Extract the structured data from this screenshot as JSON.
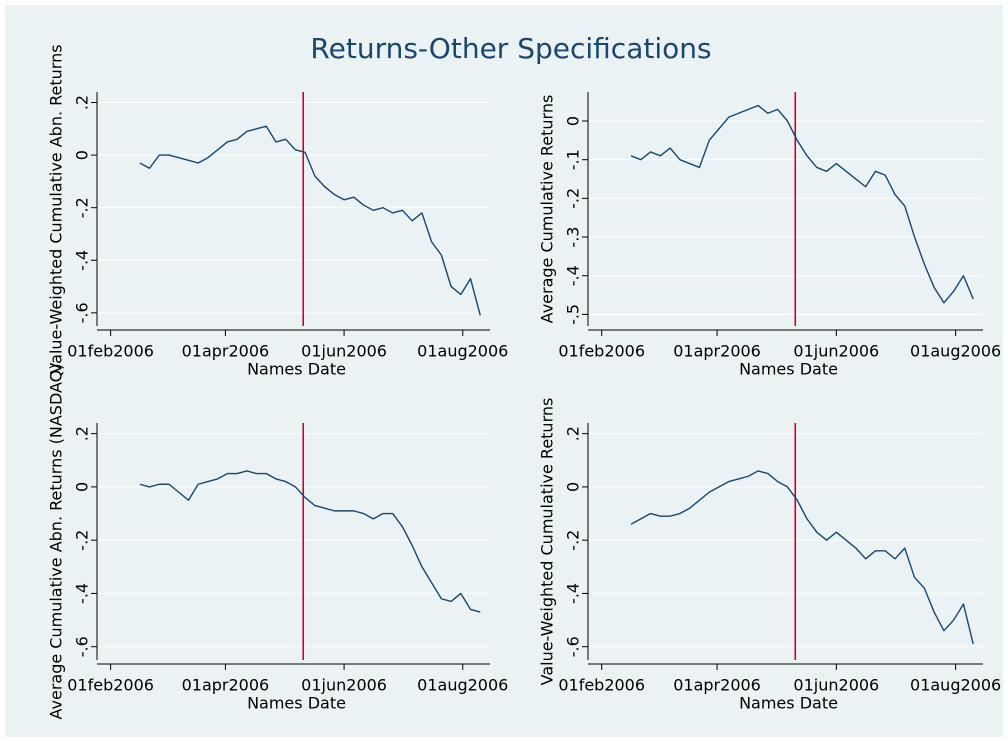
{
  "title": "Returns-Other Specifications",
  "chart_data": [
    {
      "type": "line",
      "ylabel": "Value-Weighted Cumulative Abn. Returns",
      "xlabel": "Names Date",
      "x": [
        "2006-02-16",
        "2006-02-21",
        "2006-02-26",
        "2006-03-03",
        "2006-03-08",
        "2006-03-13",
        "2006-03-18",
        "2006-03-23",
        "2006-03-28",
        "2006-04-02",
        "2006-04-07",
        "2006-04-12",
        "2006-04-17",
        "2006-04-22",
        "2006-04-27",
        "2006-05-02",
        "2006-05-07",
        "2006-05-12",
        "2006-05-17",
        "2006-05-22",
        "2006-05-27",
        "2006-06-01",
        "2006-06-06",
        "2006-06-11",
        "2006-06-16",
        "2006-06-21",
        "2006-06-26",
        "2006-07-01",
        "2006-07-06",
        "2006-07-11",
        "2006-07-16",
        "2006-07-21",
        "2006-07-26",
        "2006-07-31",
        "2006-08-05",
        "2006-08-10"
      ],
      "values": [
        -0.03,
        -0.05,
        0.0,
        0.0,
        -0.01,
        -0.02,
        -0.03,
        -0.01,
        0.02,
        0.05,
        0.06,
        0.09,
        0.1,
        0.11,
        0.05,
        0.06,
        0.02,
        0.01,
        -0.08,
        -0.12,
        -0.15,
        -0.17,
        -0.16,
        -0.19,
        -0.21,
        -0.2,
        -0.22,
        -0.21,
        -0.25,
        -0.22,
        -0.33,
        -0.38,
        -0.5,
        -0.53,
        -0.47,
        -0.61
      ],
      "color": "#1a476f",
      "xlim": [
        "2006-01-25",
        "2006-08-15"
      ],
      "xticks": [
        {
          "value": "2006-02-01",
          "label": "01feb2006"
        },
        {
          "value": "2006-04-01",
          "label": "01apr2006"
        },
        {
          "value": "2006-06-01",
          "label": "01jun2006"
        },
        {
          "value": "2006-08-01",
          "label": "01aug2006"
        }
      ],
      "ylim": [
        -0.65,
        0.24
      ],
      "yticks": [
        {
          "value": 0.2,
          "label": ".2"
        },
        0,
        {
          "value": -0.2,
          "label": "-.2"
        },
        {
          "value": -0.4,
          "label": "-.4"
        },
        {
          "value": -0.6,
          "label": "-.6"
        }
      ],
      "refline": {
        "x": "2006-05-11",
        "color": "#c10534"
      },
      "grid": true
    },
    {
      "type": "line",
      "ylabel": "Average Cumulative Returns",
      "xlabel": "Names Date",
      "x": [
        "2006-02-16",
        "2006-02-21",
        "2006-02-26",
        "2006-03-03",
        "2006-03-08",
        "2006-03-13",
        "2006-03-18",
        "2006-03-23",
        "2006-03-28",
        "2006-04-02",
        "2006-04-07",
        "2006-04-12",
        "2006-04-17",
        "2006-04-22",
        "2006-04-27",
        "2006-05-02",
        "2006-05-07",
        "2006-05-12",
        "2006-05-17",
        "2006-05-22",
        "2006-05-27",
        "2006-06-01",
        "2006-06-06",
        "2006-06-11",
        "2006-06-16",
        "2006-06-21",
        "2006-06-26",
        "2006-07-01",
        "2006-07-06",
        "2006-07-11",
        "2006-07-16",
        "2006-07-21",
        "2006-07-26",
        "2006-07-31",
        "2006-08-05",
        "2006-08-10"
      ],
      "values": [
        -0.09,
        -0.1,
        -0.08,
        -0.09,
        -0.07,
        -0.1,
        -0.11,
        -0.12,
        -0.05,
        -0.02,
        0.01,
        0.02,
        0.03,
        0.04,
        0.02,
        0.03,
        0.0,
        -0.05,
        -0.09,
        -0.12,
        -0.13,
        -0.11,
        -0.13,
        -0.15,
        -0.17,
        -0.13,
        -0.14,
        -0.19,
        -0.22,
        -0.3,
        -0.37,
        -0.43,
        -0.47,
        -0.44,
        -0.4,
        -0.46
      ],
      "color": "#1a476f",
      "xlim": [
        "2006-01-25",
        "2006-08-15"
      ],
      "xticks": [
        {
          "value": "2006-02-01",
          "label": "01feb2006"
        },
        {
          "value": "2006-04-01",
          "label": "01apr2006"
        },
        {
          "value": "2006-06-01",
          "label": "01jun2006"
        },
        {
          "value": "2006-08-01",
          "label": "01aug2006"
        }
      ],
      "ylim": [
        -0.53,
        0.075
      ],
      "yticks": [
        0,
        {
          "value": -0.1,
          "label": "-.1"
        },
        {
          "value": -0.2,
          "label": "-.2"
        },
        {
          "value": -0.3,
          "label": "-.3"
        },
        {
          "value": -0.4,
          "label": "-.4"
        },
        {
          "value": -0.5,
          "label": "-.5"
        }
      ],
      "refline": {
        "x": "2006-05-11",
        "color": "#c10534"
      },
      "grid": true
    },
    {
      "type": "line",
      "ylabel": "Average Cumulative Abn. Returns (NASDAQ)",
      "xlabel": "Names Date",
      "x": [
        "2006-02-16",
        "2006-02-21",
        "2006-02-26",
        "2006-03-03",
        "2006-03-08",
        "2006-03-13",
        "2006-03-18",
        "2006-03-23",
        "2006-03-28",
        "2006-04-02",
        "2006-04-07",
        "2006-04-12",
        "2006-04-17",
        "2006-04-22",
        "2006-04-27",
        "2006-05-02",
        "2006-05-07",
        "2006-05-12",
        "2006-05-17",
        "2006-05-22",
        "2006-05-27",
        "2006-06-01",
        "2006-06-06",
        "2006-06-11",
        "2006-06-16",
        "2006-06-21",
        "2006-06-26",
        "2006-07-01",
        "2006-07-06",
        "2006-07-11",
        "2006-07-16",
        "2006-07-21",
        "2006-07-26",
        "2006-07-31",
        "2006-08-05",
        "2006-08-10"
      ],
      "values": [
        0.01,
        0.0,
        0.01,
        0.01,
        -0.02,
        -0.05,
        0.01,
        0.02,
        0.03,
        0.05,
        0.05,
        0.06,
        0.05,
        0.05,
        0.03,
        0.02,
        0.0,
        -0.04,
        -0.07,
        -0.08,
        -0.09,
        -0.09,
        -0.09,
        -0.1,
        -0.12,
        -0.1,
        -0.1,
        -0.15,
        -0.22,
        -0.3,
        -0.36,
        -0.42,
        -0.43,
        -0.4,
        -0.46,
        -0.47
      ],
      "color": "#1a476f",
      "xlim": [
        "2006-01-25",
        "2006-08-15"
      ],
      "xticks": [
        {
          "value": "2006-02-01",
          "label": "01feb2006"
        },
        {
          "value": "2006-04-01",
          "label": "01apr2006"
        },
        {
          "value": "2006-06-01",
          "label": "01jun2006"
        },
        {
          "value": "2006-08-01",
          "label": "01aug2006"
        }
      ],
      "ylim": [
        -0.65,
        0.24
      ],
      "yticks": [
        {
          "value": 0.2,
          "label": ".2"
        },
        0,
        {
          "value": -0.2,
          "label": "-.2"
        },
        {
          "value": -0.4,
          "label": "-.4"
        },
        {
          "value": -0.6,
          "label": "-.6"
        }
      ],
      "refline": {
        "x": "2006-05-11",
        "color": "#c10534"
      },
      "grid": true
    },
    {
      "type": "line",
      "ylabel": "Value-Weighted Cumulative Returns",
      "xlabel": "Names Date",
      "x": [
        "2006-02-16",
        "2006-02-21",
        "2006-02-26",
        "2006-03-03",
        "2006-03-08",
        "2006-03-13",
        "2006-03-18",
        "2006-03-23",
        "2006-03-28",
        "2006-04-02",
        "2006-04-07",
        "2006-04-12",
        "2006-04-17",
        "2006-04-22",
        "2006-04-27",
        "2006-05-02",
        "2006-05-07",
        "2006-05-12",
        "2006-05-17",
        "2006-05-22",
        "2006-05-27",
        "2006-06-01",
        "2006-06-06",
        "2006-06-11",
        "2006-06-16",
        "2006-06-21",
        "2006-06-26",
        "2006-07-01",
        "2006-07-06",
        "2006-07-11",
        "2006-07-16",
        "2006-07-21",
        "2006-07-26",
        "2006-07-31",
        "2006-08-05",
        "2006-08-10"
      ],
      "values": [
        -0.14,
        -0.12,
        -0.1,
        -0.11,
        -0.11,
        -0.1,
        -0.08,
        -0.05,
        -0.02,
        0.0,
        0.02,
        0.03,
        0.04,
        0.06,
        0.05,
        0.02,
        0.0,
        -0.05,
        -0.12,
        -0.17,
        -0.2,
        -0.17,
        -0.2,
        -0.23,
        -0.27,
        -0.24,
        -0.24,
        -0.27,
        -0.23,
        -0.34,
        -0.38,
        -0.47,
        -0.54,
        -0.5,
        -0.44,
        -0.59
      ],
      "color": "#1a476f",
      "xlim": [
        "2006-01-25",
        "2006-08-15"
      ],
      "xticks": [
        {
          "value": "2006-02-01",
          "label": "01feb2006"
        },
        {
          "value": "2006-04-01",
          "label": "01apr2006"
        },
        {
          "value": "2006-06-01",
          "label": "01jun2006"
        },
        {
          "value": "2006-08-01",
          "label": "01aug2006"
        }
      ],
      "ylim": [
        -0.65,
        0.24
      ],
      "yticks": [
        {
          "value": 0.2,
          "label": ".2"
        },
        0,
        {
          "value": -0.2,
          "label": "-.2"
        },
        {
          "value": -0.4,
          "label": "-.4"
        },
        {
          "value": -0.6,
          "label": "-.6"
        }
      ],
      "refline": {
        "x": "2006-05-11",
        "color": "#c10534"
      },
      "grid": true
    }
  ]
}
